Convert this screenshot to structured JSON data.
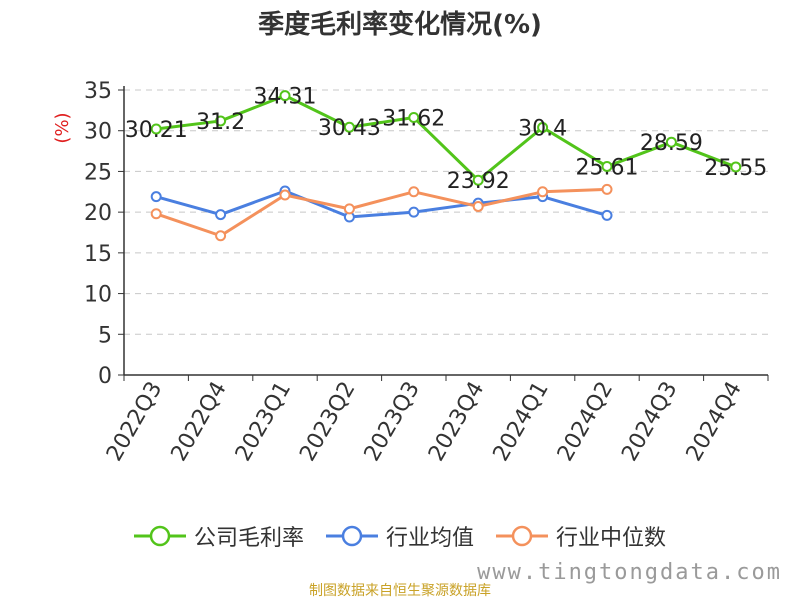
{
  "chart_data": {
    "type": "line",
    "title": "季度毛利率变化情况(%)",
    "ylabel": "(%)",
    "categories": [
      "2022Q3",
      "2022Q4",
      "2023Q1",
      "2023Q2",
      "2023Q3",
      "2023Q4",
      "2024Q1",
      "2024Q2",
      "2024Q3",
      "2024Q4"
    ],
    "y_ticks": [
      0,
      5,
      10,
      15,
      20,
      25,
      30,
      35
    ],
    "ylim": [
      0,
      35
    ],
    "grid": true,
    "legend_position": "bottom",
    "series": [
      {
        "name": "公司毛利率",
        "color": "#52c41a",
        "values": [
          30.21,
          31.2,
          34.31,
          30.43,
          31.62,
          23.92,
          30.4,
          25.61,
          28.59,
          25.55
        ],
        "labels": [
          "30.21",
          "31.2",
          "34.31",
          "30.43",
          "31.62",
          "23.92",
          "30.4",
          "25.61",
          "28.59",
          "25.55"
        ]
      },
      {
        "name": "行业均值",
        "color": "#4a7fe0",
        "values": [
          21.9,
          19.7,
          22.6,
          19.4,
          20.0,
          21.1,
          21.9,
          19.6,
          null,
          null
        ]
      },
      {
        "name": "行业中位数",
        "color": "#f4915c",
        "values": [
          19.8,
          17.1,
          22.1,
          20.4,
          22.5,
          20.7,
          22.5,
          22.8,
          null,
          null
        ]
      }
    ]
  },
  "footer": {
    "source": "制图数据来自恒生聚源数据库",
    "watermark": "www.tingtongdata.com"
  }
}
